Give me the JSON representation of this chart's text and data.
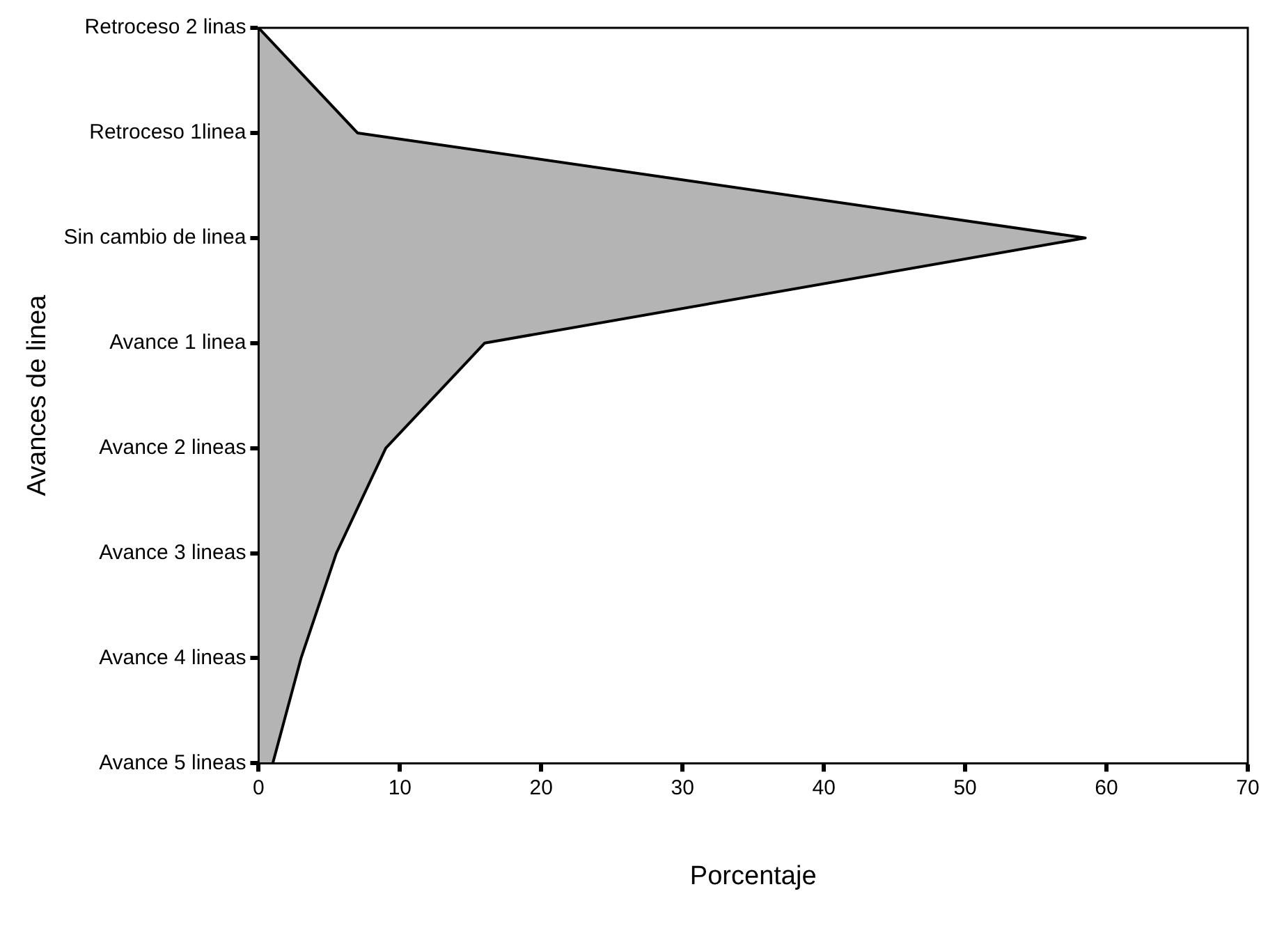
{
  "chart_data": {
    "type": "area",
    "orientation": "horizontal",
    "xlabel": "Porcentaje",
    "ylabel": "Avances de linea",
    "categories": [
      "Retroceso 2 linas",
      "Retroceso 1linea",
      "Sin cambio de linea",
      "Avance 1 linea",
      "Avance 2 lineas",
      "Avance 3 lineas",
      "Avance 4 lineas",
      "Avance 5 lineas"
    ],
    "values": [
      0,
      7,
      58.5,
      16,
      9,
      5.5,
      3,
      1
    ],
    "color": "#b4b4b4",
    "xlim": [
      0,
      70
    ],
    "xticks": [
      0,
      10,
      20,
      30,
      40,
      50,
      60,
      70
    ],
    "grid": false,
    "legend": false
  }
}
